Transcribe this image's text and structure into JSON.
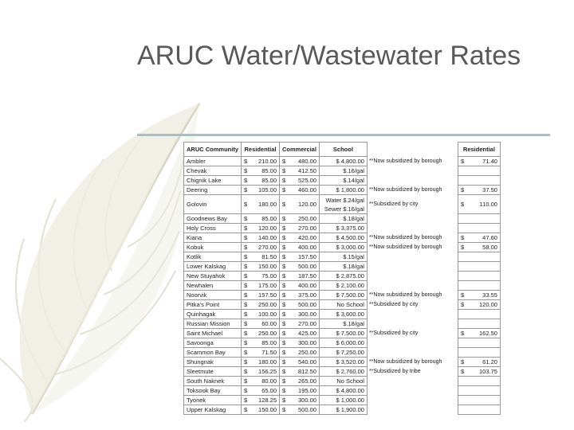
{
  "header": {
    "title": "ARUC Water/Wastewater Rates"
  },
  "table": {
    "header": {
      "community": "ARUC Community",
      "residential": "Residential",
      "commercial": "Commercial",
      "school": "School",
      "residential2": "Residential"
    },
    "rows": [
      {
        "community": "Ambler",
        "residential": "$ 210.00",
        "commercial": "$ 480.00",
        "school": "$ 4,800.00",
        "note": "**Now subsidized by borough",
        "residential2": "$ 71.40"
      },
      {
        "community": "Chevak",
        "residential": "$ 85.00",
        "commercial": "$ 412.50",
        "school": "$.16/gal"
      },
      {
        "community": "Chignik Lake",
        "residential": "$ 85.00",
        "commercial": "$ 525.00",
        "school": "$.14/gal"
      },
      {
        "community": "Deering",
        "residential": "$ 105.00",
        "commercial": "$ 460.00",
        "school": "$ 1,800.00",
        "note": "**Now subsidized by borough",
        "residential2": "$ 37.50"
      },
      {
        "community": "Golovin",
        "residential": "$ 180.00",
        "commercial": "$ 120.00",
        "school": "Water $.24/gal Sewer $.16/gal",
        "note": "**Subsidized by city",
        "residential2": "$ 110.00"
      },
      {
        "community": "Goodnews Bay",
        "residential": "$ 85.00",
        "commercial": "$ 250.00",
        "school": "$.18/gal"
      },
      {
        "community": "Holy Cross",
        "residential": "$ 120.00",
        "commercial": "$ 270.00",
        "school": "$ 3,375.00"
      },
      {
        "community": "Kiana",
        "residential": "$ 140.00",
        "commercial": "$ 420.00",
        "school": "$ 4,500.00",
        "note": "**Now subsidized by borough",
        "residential2": "$ 47.60"
      },
      {
        "community": "Kobuk",
        "residential": "$ 270.00",
        "commercial": "$ 400.00",
        "school": "$ 3,000.00",
        "note": "**Now subsidized by borough",
        "residential2": "$ 58.00"
      },
      {
        "community": "Kotlik",
        "residential": "$ 81.50",
        "commercial": "$ 157.50",
        "school": "$.15/gal"
      },
      {
        "community": "Lower Kalskag",
        "residential": "$ 150.00",
        "commercial": "$ 500.00",
        "school": "$.18/gal"
      },
      {
        "community": "New Stuyahok",
        "residential": "$ 75.00",
        "commercial": "$ 187.50",
        "school": "$ 2,875.00"
      },
      {
        "community": "Newhalen",
        "residential": "$ 175.00",
        "commercial": "$ 400.00",
        "school": "$ 2,100.00"
      },
      {
        "community": "Noorvik",
        "residential": "$ 157.50",
        "commercial": "$ 375.00",
        "school": "$ 7,500.00",
        "note": "**Now subsidized by borough",
        "residential2": "$ 33.55"
      },
      {
        "community": "Pitka's Point",
        "residential": "$ 250.00",
        "commercial": "$ 500.00",
        "school": "No School",
        "note": "**Subsidized by city",
        "residential2": "$ 120.00"
      },
      {
        "community": "Quinhagak",
        "residential": "$ 100.00",
        "commercial": "$ 300.00",
        "school": "$ 3,600.00"
      },
      {
        "community": "Russian Mission",
        "residential": "$ 60.00",
        "commercial": "$ 270.00",
        "school": "$.18/gal"
      },
      {
        "community": "Saint Michael",
        "residential": "$ 250.00",
        "commercial": "$ 425.00",
        "school": "$ 7,500.00",
        "note": "**Subsidized by city",
        "residential2": "$ 162.50"
      },
      {
        "community": "Savoonga",
        "residential": "$ 85.00",
        "commercial": "$ 300.00",
        "school": "$ 6,000.00"
      },
      {
        "community": "Scammon Bay",
        "residential": "$ 71.50",
        "commercial": "$ 250.00",
        "school": "$ 7,250.00"
      },
      {
        "community": "Shungnak",
        "residential": "$ 180.00",
        "commercial": "$ 540.00",
        "school": "$ 3,520.00",
        "note": "**Now subsidized by borough",
        "residential2": "$ 61.20"
      },
      {
        "community": "Sleetmute",
        "residential": "$ 156.25",
        "commercial": "$ 812.50",
        "school": "$ 2,760.00",
        "note": "**Subsidized by tribe",
        "residential2": "$ 103.75"
      },
      {
        "community": "South Naknek",
        "residential": "$ 80.00",
        "commercial": "$ 265.00",
        "school": "No School"
      },
      {
        "community": "Toksook Bay",
        "residential": "$ 65.00",
        "commercial": "$ 195.00",
        "school": "$ 4,800.00"
      },
      {
        "community": "Tyonek",
        "residential": "$ 128.25",
        "commercial": "$ 300.00",
        "school": "$ 1,000.00"
      },
      {
        "community": "Upper Kalskag",
        "residential": "$ 150.00",
        "commercial": "$ 500.00",
        "school": "$ 1,900.00"
      }
    ]
  }
}
